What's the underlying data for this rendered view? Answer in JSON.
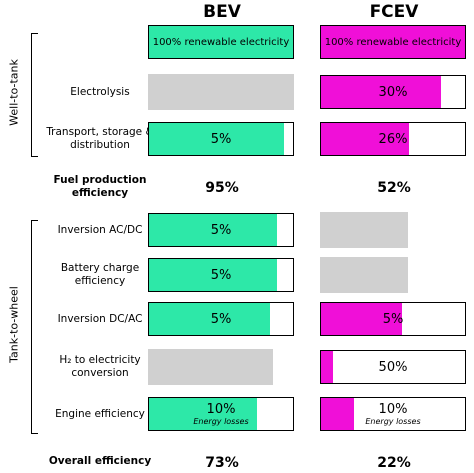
{
  "columns": [
    "BEV",
    "FCEV"
  ],
  "groups": [
    {
      "label": "Well-to-tank"
    },
    {
      "label": "Tank-to-wheel"
    }
  ],
  "colors": [
    "#2de8a8",
    "#f00fd8"
  ],
  "rows": [
    {
      "label": null,
      "cells": [
        {
          "text": "100% renewable electricity",
          "fill": 100
        },
        {
          "text": "100% renewable electricity",
          "fill": 100
        }
      ]
    },
    {
      "label": "Electrolysis",
      "cells": [
        null,
        {
          "text": "30%",
          "fill": 83
        }
      ]
    },
    {
      "label": "Transport, storage & distribution",
      "cells": [
        {
          "text": "5%",
          "fill": 94
        },
        {
          "text": "26%",
          "fill": 61
        }
      ]
    },
    {
      "label": "Inversion AC/DC",
      "cells": [
        {
          "text": "5%",
          "fill": 89
        },
        null
      ]
    },
    {
      "label": "Battery charge efficiency",
      "cells": [
        {
          "text": "5%",
          "fill": 89
        },
        null
      ]
    },
    {
      "label": "Inversion DC/AC",
      "cells": [
        {
          "text": "5%",
          "fill": 84
        },
        {
          "text": "5%",
          "fill": 56
        }
      ]
    },
    {
      "label": "H₂ to electricity conversion",
      "cells": [
        null,
        {
          "text": "50%",
          "fill": 8
        }
      ]
    },
    {
      "label": "Engine efficiency",
      "cells": [
        {
          "text": "10%",
          "note": "Energy losses",
          "fill": 75
        },
        {
          "text": "10%",
          "note": "Energy losses",
          "fill": 23
        }
      ]
    }
  ],
  "summaries": [
    {
      "label": "Fuel production efficiency",
      "values": [
        "95%",
        "52%"
      ]
    },
    {
      "label": "Overall efficiency",
      "values": [
        "73%",
        "22%"
      ]
    }
  ]
}
